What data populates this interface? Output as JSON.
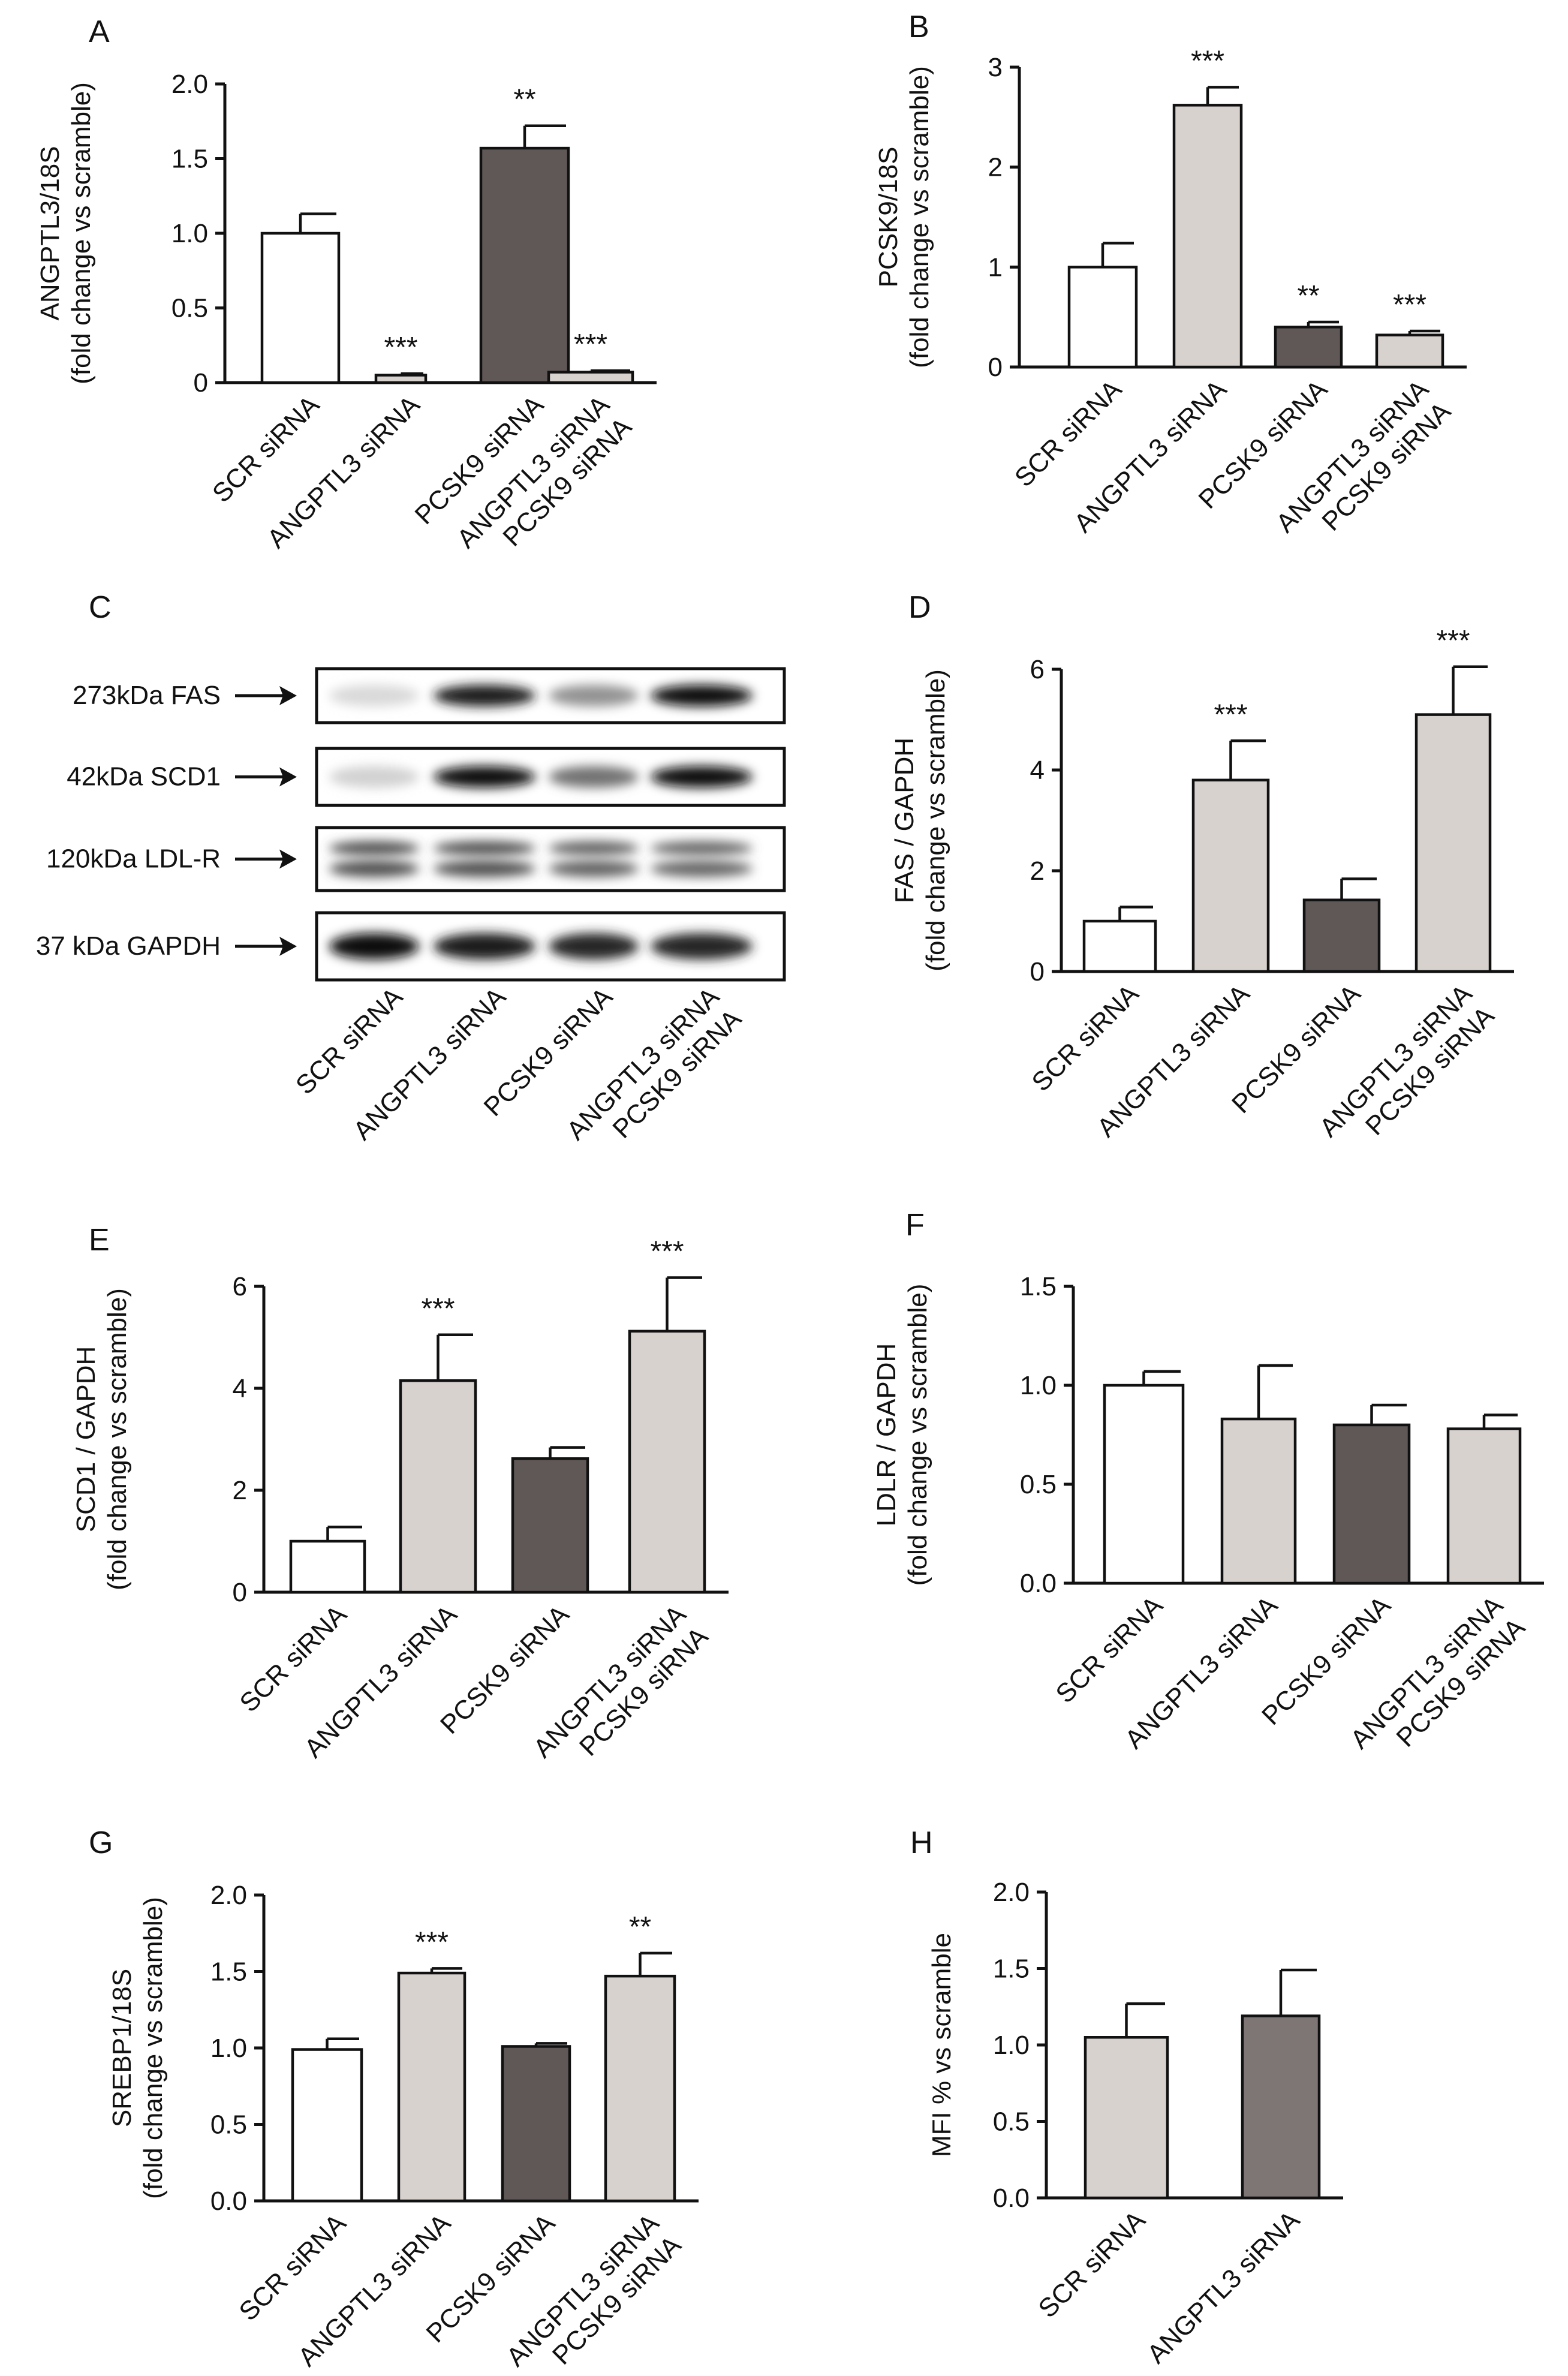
{
  "colors": {
    "white": "#ffffff",
    "light_gray": "#d8d2cf",
    "dark_gray": "#5f5857",
    "mid_gray": "#7d7674",
    "axis": "#111111"
  },
  "chart_data": [
    {
      "panel": "A",
      "type": "bar",
      "ylabel": [
        "ANGPTL3/18S",
        "(fold change vs scramble)"
      ],
      "ylim": [
        0,
        2.0
      ],
      "yticks": [
        "0",
        "0.5",
        "1.0",
        "1.5",
        "2.0"
      ],
      "categories": [
        [
          "SCR siRNA"
        ],
        [
          "ANGPTL3 siRNA"
        ],
        [
          "PCSK9 siRNA"
        ],
        [
          "ANGPTL3 siRNA",
          "PCSK9 siRNA"
        ]
      ],
      "values": [
        1.0,
        0.05,
        1.57,
        0.07
      ],
      "errors": [
        0.13,
        0.01,
        0.15,
        0.01
      ],
      "fills": [
        "white",
        "light_gray",
        "dark_gray",
        "light_gray"
      ],
      "significance": [
        "",
        "***",
        "**",
        "***"
      ]
    },
    {
      "panel": "B",
      "type": "bar",
      "ylabel": [
        "PCSK9/18S",
        "(fold change vs scramble)"
      ],
      "ylim": [
        0,
        3
      ],
      "yticks": [
        "0",
        "1",
        "2",
        "3"
      ],
      "categories": [
        [
          "SCR siRNA"
        ],
        [
          "ANGPTL3 siRNA"
        ],
        [
          "PCSK9 siRNA"
        ],
        [
          "ANGPTL3 siRNA",
          "PCSK9 siRNA"
        ]
      ],
      "values": [
        1.0,
        2.62,
        0.4,
        0.32
      ],
      "errors": [
        0.24,
        0.18,
        0.05,
        0.04
      ],
      "fills": [
        "white",
        "light_gray",
        "dark_gray",
        "light_gray"
      ],
      "significance": [
        "",
        "***",
        "**",
        "***"
      ]
    },
    {
      "panel": "D",
      "type": "bar",
      "ylabel": [
        "FAS / GAPDH",
        "(fold change vs scramble)"
      ],
      "ylim": [
        0,
        6
      ],
      "yticks": [
        "0",
        "2",
        "4",
        "6"
      ],
      "categories": [
        [
          "SCR siRNA"
        ],
        [
          "ANGPTL3 siRNA"
        ],
        [
          "PCSK9 siRNA"
        ],
        [
          "ANGPTL3 siRNA",
          "PCSK9 siRNA"
        ]
      ],
      "values": [
        1.0,
        3.8,
        1.42,
        5.1
      ],
      "errors": [
        0.28,
        0.78,
        0.42,
        0.95
      ],
      "fills": [
        "white",
        "light_gray",
        "dark_gray",
        "light_gray"
      ],
      "significance": [
        "",
        "***",
        "",
        "***"
      ]
    },
    {
      "panel": "E",
      "type": "bar",
      "ylabel": [
        "SCD1 / GAPDH",
        "(fold change vs scramble)"
      ],
      "ylim": [
        0,
        6
      ],
      "yticks": [
        "0",
        "2",
        "4",
        "6"
      ],
      "categories": [
        [
          "SCR siRNA"
        ],
        [
          "ANGPTL3 siRNA"
        ],
        [
          "PCSK9 siRNA"
        ],
        [
          "ANGPTL3 siRNA",
          "PCSK9 siRNA"
        ]
      ],
      "values": [
        1.0,
        4.15,
        2.62,
        5.12
      ],
      "errors": [
        0.28,
        0.9,
        0.22,
        1.05
      ],
      "fills": [
        "white",
        "light_gray",
        "dark_gray",
        "light_gray"
      ],
      "significance": [
        "",
        "***",
        "",
        "***"
      ]
    },
    {
      "panel": "F",
      "type": "bar",
      "ylabel": [
        "LDLR / GAPDH",
        "(fold change vs scramble)"
      ],
      "ylim": [
        0,
        1.5
      ],
      "yticks": [
        "0.0",
        "0.5",
        "1.0",
        "1.5"
      ],
      "categories": [
        [
          "SCR siRNA"
        ],
        [
          "ANGPTL3 siRNA"
        ],
        [
          "PCSK9 siRNA"
        ],
        [
          "ANGPTL3 siRNA",
          "PCSK9 siRNA"
        ]
      ],
      "values": [
        1.0,
        0.83,
        0.8,
        0.78
      ],
      "errors": [
        0.07,
        0.27,
        0.1,
        0.07
      ],
      "fills": [
        "white",
        "light_gray",
        "dark_gray",
        "light_gray"
      ],
      "significance": [
        "",
        "",
        "",
        ""
      ]
    },
    {
      "panel": "G",
      "type": "bar",
      "ylabel": [
        "SREBP1/18S",
        "(fold change vs scramble)"
      ],
      "ylim": [
        0,
        2.0
      ],
      "yticks": [
        "0.0",
        "0.5",
        "1.0",
        "1.5",
        "2.0"
      ],
      "categories": [
        [
          "SCR siRNA"
        ],
        [
          "ANGPTL3 siRNA"
        ],
        [
          "PCSK9 siRNA"
        ],
        [
          "ANGPTL3 siRNA",
          "PCSK9 siRNA"
        ]
      ],
      "values": [
        0.99,
        1.49,
        1.01,
        1.47
      ],
      "errors": [
        0.07,
        0.03,
        0.02,
        0.15
      ],
      "fills": [
        "white",
        "light_gray",
        "dark_gray",
        "light_gray"
      ],
      "significance": [
        "",
        "***",
        "",
        "**"
      ]
    },
    {
      "panel": "H",
      "type": "bar",
      "ylabel": [
        "MFI % vs scramble"
      ],
      "ylim": [
        0,
        2.0
      ],
      "yticks": [
        "0.0",
        "0.5",
        "1.0",
        "1.5",
        "2.0"
      ],
      "categories": [
        [
          "SCR siRNA"
        ],
        [
          "ANGPTL3 siRNA"
        ]
      ],
      "values": [
        1.05,
        1.19
      ],
      "errors": [
        0.22,
        0.3
      ],
      "fills": [
        "light_gray",
        "mid_gray"
      ],
      "significance": [
        "",
        ""
      ]
    }
  ],
  "blot": {
    "panel": "C",
    "rows": [
      {
        "label": "273kDa FAS",
        "intensity": [
          0.08,
          0.95,
          0.4,
          1.0
        ]
      },
      {
        "label": "42kDa SCD1",
        "intensity": [
          0.12,
          1.0,
          0.55,
          1.0
        ]
      },
      {
        "label": "120kDa LDL-R",
        "intensity": [
          0.7,
          0.7,
          0.62,
          0.6
        ]
      },
      {
        "label": "37 kDa GAPDH",
        "intensity": [
          1.0,
          0.95,
          0.9,
          0.9
        ]
      }
    ],
    "lanes": [
      [
        "SCR siRNA"
      ],
      [
        "ANGPTL3 siRNA"
      ],
      [
        "PCSK9 siRNA"
      ],
      [
        "ANGPTL3 siRNA",
        "PCSK9 siRNA"
      ]
    ]
  }
}
